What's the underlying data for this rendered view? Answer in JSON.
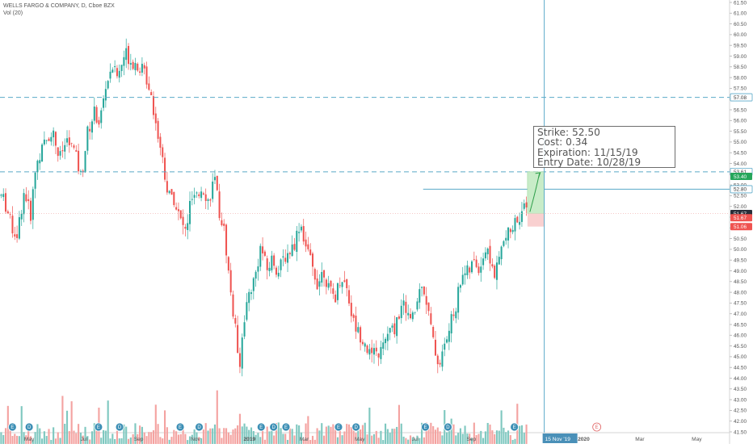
{
  "legend": {
    "symbol_line": "WELLS FARGO & COMPANY, D, Cboe BZX",
    "volume_line": "Vol (20)"
  },
  "note": {
    "strike": "Strike: 52.50",
    "cost": "Cost: 0.34",
    "expiration": "Expiration: 11/15/19",
    "entry": "Entry Date: 10/28/19"
  },
  "colors": {
    "up": "#26a69a",
    "down": "#ef5350",
    "up_vol": "#7fc8c0",
    "down_vol": "#f4a3a1",
    "guide": "#5aa9c8",
    "dashed": "#5aa9c8",
    "target_fill": "#c8ecc8",
    "stop_fill": "#f9d0d0"
  },
  "chart_data": {
    "type": "candlestick",
    "symbol": "WELLS FARGO & COMPANY, D, Cboe BZX",
    "y_axis": {
      "min": 41.5,
      "max": 61.5,
      "ticks": [
        "41.50",
        "42.00",
        "42.50",
        "43.00",
        "43.50",
        "44.00",
        "44.50",
        "45.00",
        "45.50",
        "46.00",
        "46.50",
        "47.00",
        "47.50",
        "48.00",
        "48.50",
        "49.00",
        "49.50",
        "50.00",
        "50.50",
        "51.00",
        "51.50",
        "52.00",
        "52.50",
        "53.00",
        "53.50",
        "54.00",
        "54.50",
        "55.00",
        "55.50",
        "56.00",
        "56.50",
        "57.00",
        "57.50",
        "58.00",
        "58.50",
        "59.00",
        "59.50",
        "60.00",
        "60.50",
        "61.00",
        "61.50"
      ]
    },
    "x_axis": {
      "labels": [
        {
          "text": "May",
          "t": 0.04
        },
        {
          "text": "Jul",
          "t": 0.115
        },
        {
          "text": "Sep",
          "t": 0.19
        },
        {
          "text": "Nov",
          "t": 0.268
        },
        {
          "text": "2019",
          "t": 0.342
        },
        {
          "text": "Mar",
          "t": 0.417
        },
        {
          "text": "May",
          "t": 0.493
        },
        {
          "text": "Jul",
          "t": 0.569
        },
        {
          "text": "Sep",
          "t": 0.646
        },
        {
          "text": "15 Nov '19",
          "t": 0.746,
          "highlight": true
        },
        {
          "text": "2020",
          "t": 0.8
        },
        {
          "text": "Mar",
          "t": 0.877
        },
        {
          "text": "May",
          "t": 0.955
        }
      ]
    },
    "price_badges": [
      {
        "value": "57.08",
        "y": 57.08,
        "bg": "#ffffff",
        "fg": "#333333",
        "border": "#5aa9c8"
      },
      {
        "value": "53.61",
        "y": 53.61,
        "bg": "#ffffff",
        "fg": "#333333",
        "border": "#5aa9c8"
      },
      {
        "value": "53.40",
        "y": 53.4,
        "bg": "#26a65b",
        "fg": "#ffffff"
      },
      {
        "value": "52.80",
        "y": 52.8,
        "bg": "#ffffff",
        "fg": "#333333",
        "border": "#5aa9c8"
      },
      {
        "value": "51.67",
        "y": 51.67,
        "bg": "#2a2e39",
        "fg": "#ffffff"
      },
      {
        "value": "51.67",
        "y": 51.47,
        "bg": "#ef5350",
        "fg": "#ffffff"
      },
      {
        "value": "51.06",
        "y": 51.06,
        "bg": "#ef5350",
        "fg": "#ffffff"
      }
    ],
    "horizontal_lines": [
      {
        "y": 57.08,
        "style": "dashed"
      },
      {
        "y": 53.61,
        "style": "dashed"
      },
      {
        "y": 52.8,
        "style": "solid",
        "from_t": 0.58
      }
    ],
    "vertical_line_t": 0.746,
    "position": {
      "entry": 51.67,
      "target": 53.61,
      "stop": 51.06,
      "from_t": 0.723,
      "to_t": 0.746
    },
    "event_markers": [
      {
        "t": 0.017,
        "label": "E"
      },
      {
        "t": 0.04,
        "label": "D"
      },
      {
        "t": 0.135,
        "label": "E"
      },
      {
        "t": 0.164,
        "label": "D"
      },
      {
        "t": 0.247,
        "label": "E"
      },
      {
        "t": 0.273,
        "label": "D"
      },
      {
        "t": 0.358,
        "label": "E"
      },
      {
        "t": 0.375,
        "label": "D"
      },
      {
        "t": 0.392,
        "label": "E"
      },
      {
        "t": 0.464,
        "label": "E"
      },
      {
        "t": 0.488,
        "label": "D"
      },
      {
        "t": 0.583,
        "label": "E"
      },
      {
        "t": 0.614,
        "label": "D"
      },
      {
        "t": 0.705,
        "label": "E"
      },
      {
        "t": 0.818,
        "label": "E",
        "future": true
      }
    ],
    "anchors": [
      [
        0.0,
        52.5
      ],
      [
        0.005,
        52.2
      ],
      [
        0.015,
        51.0
      ],
      [
        0.022,
        50.7
      ],
      [
        0.032,
        52.8
      ],
      [
        0.04,
        51.5
      ],
      [
        0.048,
        54.0
      ],
      [
        0.058,
        54.8
      ],
      [
        0.07,
        55.6
      ],
      [
        0.08,
        54.2
      ],
      [
        0.09,
        55.1
      ],
      [
        0.1,
        54.6
      ],
      [
        0.11,
        53.3
      ],
      [
        0.118,
        55.4
      ],
      [
        0.128,
        56.4
      ],
      [
        0.135,
        55.9
      ],
      [
        0.143,
        57.5
      ],
      [
        0.152,
        58.6
      ],
      [
        0.16,
        58.0
      ],
      [
        0.17,
        59.2
      ],
      [
        0.178,
        58.8
      ],
      [
        0.188,
        58.6
      ],
      [
        0.197,
        58.2
      ],
      [
        0.205,
        57.4
      ],
      [
        0.213,
        55.7
      ],
      [
        0.221,
        54.3
      ],
      [
        0.229,
        52.5
      ],
      [
        0.237,
        52.4
      ],
      [
        0.245,
        51.4
      ],
      [
        0.253,
        50.8
      ],
      [
        0.26,
        52.3
      ],
      [
        0.268,
        52.3
      ],
      [
        0.276,
        53.0
      ],
      [
        0.284,
        52.2
      ],
      [
        0.292,
        53.3
      ],
      [
        0.299,
        51.8
      ],
      [
        0.306,
        50.8
      ],
      [
        0.313,
        48.5
      ],
      [
        0.32,
        46.5
      ],
      [
        0.327,
        44.7
      ],
      [
        0.333,
        46.8
      ],
      [
        0.34,
        48.0
      ],
      [
        0.348,
        48.7
      ],
      [
        0.356,
        50.2
      ],
      [
        0.364,
        49.0
      ],
      [
        0.372,
        49.6
      ],
      [
        0.38,
        48.9
      ],
      [
        0.387,
        49.6
      ],
      [
        0.395,
        49.9
      ],
      [
        0.402,
        50.3
      ],
      [
        0.41,
        51.3
      ],
      [
        0.418,
        50.1
      ],
      [
        0.426,
        49.2
      ],
      [
        0.434,
        48.4
      ],
      [
        0.442,
        49.1
      ],
      [
        0.45,
        48.0
      ],
      [
        0.458,
        47.8
      ],
      [
        0.466,
        48.8
      ],
      [
        0.474,
        48.2
      ],
      [
        0.482,
        46.7
      ],
      [
        0.49,
        46.1
      ],
      [
        0.498,
        45.8
      ],
      [
        0.506,
        45.0
      ],
      [
        0.514,
        45.1
      ],
      [
        0.522,
        45.3
      ],
      [
        0.53,
        46.1
      ],
      [
        0.538,
        46.2
      ],
      [
        0.546,
        47.1
      ],
      [
        0.554,
        47.4
      ],
      [
        0.562,
        46.5
      ],
      [
        0.57,
        47.5
      ],
      [
        0.577,
        48.6
      ],
      [
        0.585,
        47.2
      ],
      [
        0.592,
        45.7
      ],
      [
        0.6,
        44.6
      ],
      [
        0.608,
        45.5
      ],
      [
        0.616,
        46.5
      ],
      [
        0.624,
        47.5
      ],
      [
        0.632,
        49.0
      ],
      [
        0.64,
        48.9
      ],
      [
        0.648,
        49.4
      ],
      [
        0.656,
        49.1
      ],
      [
        0.663,
        50.0
      ],
      [
        0.67,
        49.6
      ],
      [
        0.677,
        48.7
      ],
      [
        0.684,
        49.8
      ],
      [
        0.691,
        50.5
      ],
      [
        0.698,
        50.8
      ],
      [
        0.705,
        51.3
      ],
      [
        0.713,
        51.7
      ],
      [
        0.72,
        51.9
      ]
    ],
    "volume_axis": {
      "baseline_y": 43.45,
      "max_bar_px": 70
    }
  }
}
